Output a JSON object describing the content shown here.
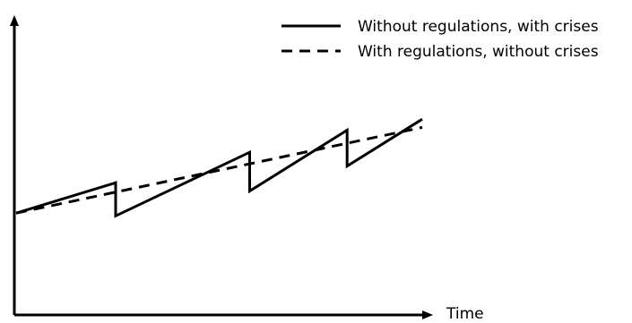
{
  "chart_data": {
    "type": "line",
    "xlabel": "Time",
    "ylabel": "",
    "legend_position": "top-right",
    "grid": false,
    "xlim": [
      0,
      100
    ],
    "ylim": [
      0,
      100
    ],
    "series": [
      {
        "name": "Without regulations, with crises",
        "line_style": "solid",
        "color": "#000000",
        "x": [
          0,
          24.5,
          24.5,
          57.5,
          57.5,
          81.5,
          81.5,
          100
        ],
        "y": [
          31,
          42,
          30,
          53,
          39,
          61,
          48,
          65
        ]
      },
      {
        "name": "With regulations, without crises",
        "line_style": "dashed",
        "color": "#000000",
        "x": [
          0,
          100
        ],
        "y": [
          31,
          62
        ]
      }
    ]
  }
}
